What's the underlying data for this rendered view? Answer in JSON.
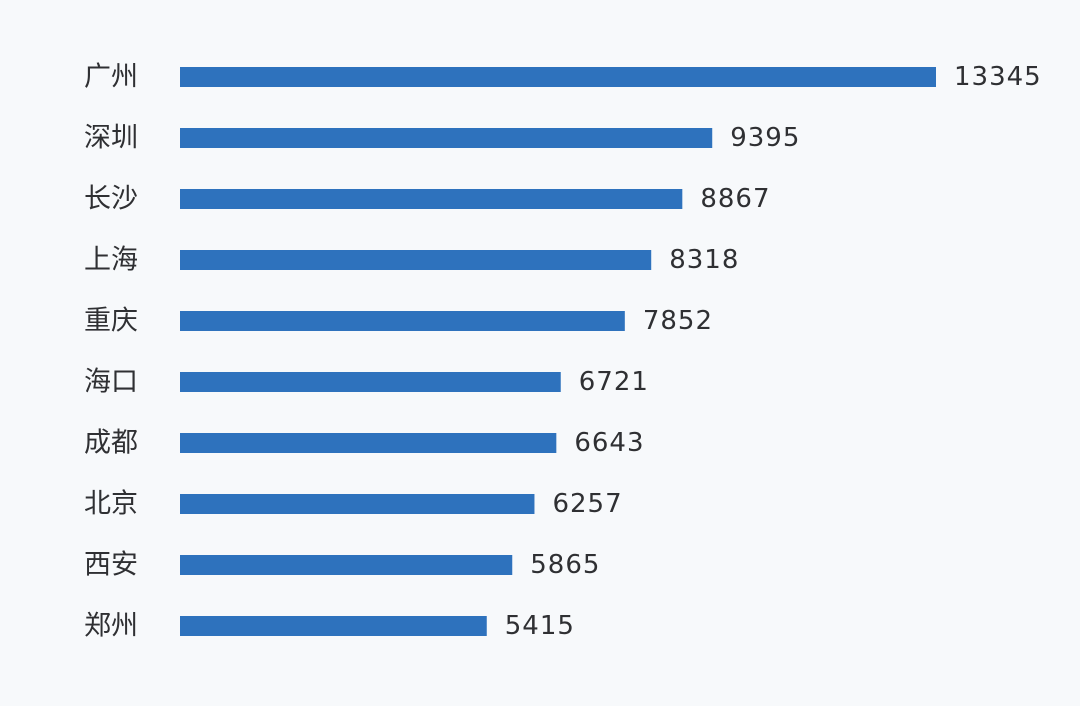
{
  "chart_data": {
    "type": "bar",
    "orientation": "horizontal",
    "categories": [
      "广州",
      "深圳",
      "长沙",
      "上海",
      "重庆",
      "海口",
      "成都",
      "北京",
      "西安",
      "郑州"
    ],
    "values": [
      13345,
      9395,
      8867,
      8318,
      7852,
      6721,
      6643,
      6257,
      5865,
      5415
    ],
    "value_labels": [
      "13345",
      "9395",
      "8867",
      "8318",
      "7852",
      "6721",
      "6643",
      "6257",
      "5865",
      "5415"
    ],
    "title": "",
    "xlabel": "",
    "ylabel": "",
    "xlim": [
      0,
      13345
    ],
    "grid": false,
    "legend": "none",
    "bar_color": "#2e72bd",
    "text_color": "#2f3033",
    "background_color": "#f7f9fb"
  }
}
